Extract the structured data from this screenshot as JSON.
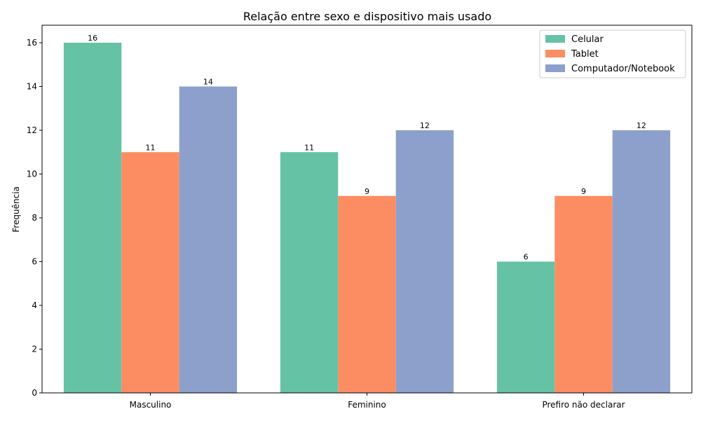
{
  "chart_data": {
    "type": "bar",
    "title": "Relação entre sexo e dispositivo mais usado",
    "xlabel": "",
    "ylabel": "Frequência",
    "categories": [
      "Masculino",
      "Feminino",
      "Prefiro não declarar"
    ],
    "series": [
      {
        "name": "Celular",
        "color": "#66c2a5",
        "values": [
          16,
          11,
          6
        ]
      },
      {
        "name": "Tablet",
        "color": "#fc8d62",
        "values": [
          11,
          9,
          9
        ]
      },
      {
        "name": "Computador/Notebook",
        "color": "#8da0cb",
        "values": [
          14,
          12,
          12
        ]
      }
    ],
    "ylim": [
      0,
      16.8
    ],
    "yticks": [
      0,
      2,
      4,
      6,
      8,
      10,
      12,
      14,
      16
    ],
    "grid": false,
    "legend_position": "top-right",
    "data_labels": true
  }
}
